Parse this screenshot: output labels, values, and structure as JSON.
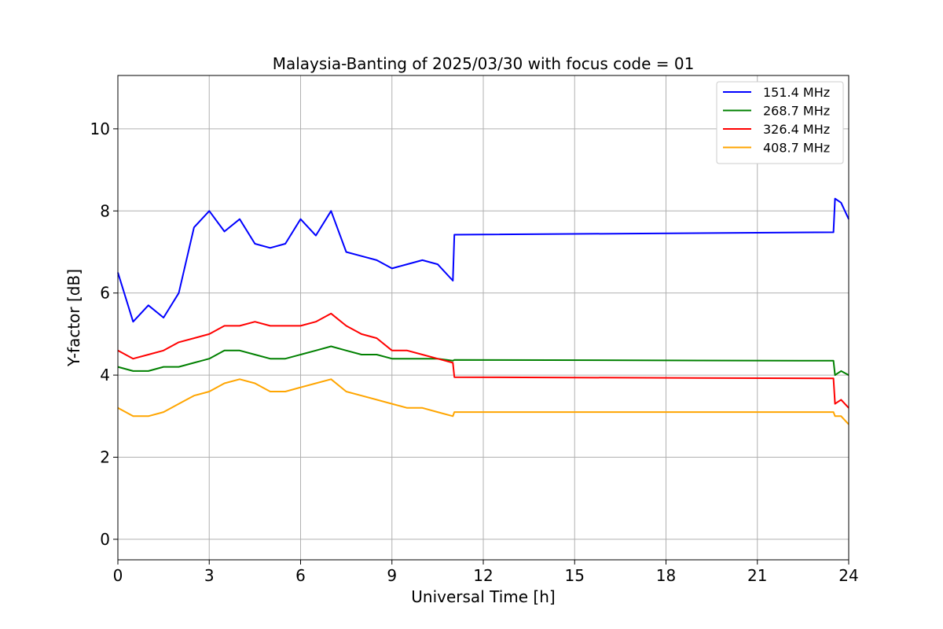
{
  "chart_data": {
    "type": "line",
    "title": "Malaysia-Banting of 2025/03/30 with focus code = 01",
    "xlabel": "Universal Time [h]",
    "ylabel": "Y-factor [dB]",
    "xlim": [
      0,
      24
    ],
    "ylim": [
      -0.5,
      11.3
    ],
    "xticks": [
      0,
      3,
      6,
      9,
      12,
      15,
      18,
      21,
      24
    ],
    "yticks": [
      0,
      2,
      4,
      6,
      8,
      10
    ],
    "grid": true,
    "legend_position": "top-right",
    "x": [
      0.0,
      0.5,
      1.0,
      1.5,
      2.0,
      2.5,
      3.0,
      3.5,
      4.0,
      4.5,
      5.0,
      5.5,
      6.0,
      6.5,
      7.0,
      7.5,
      8.0,
      8.5,
      9.0,
      9.5,
      10.0,
      10.5,
      11.0,
      11.05,
      23.5,
      23.55,
      23.75,
      24.0
    ],
    "series": [
      {
        "name": "151.4 MHz",
        "color": "#0000ff",
        "values": [
          6.5,
          5.3,
          5.7,
          5.4,
          6.0,
          7.6,
          8.0,
          7.5,
          7.8,
          7.2,
          7.1,
          7.2,
          7.8,
          7.4,
          8.0,
          7.0,
          6.9,
          6.8,
          6.6,
          6.7,
          6.8,
          6.7,
          6.3,
          7.42,
          7.48,
          8.3,
          8.2,
          7.8
        ]
      },
      {
        "name": "268.7 MHz",
        "color": "#008000",
        "values": [
          4.2,
          4.1,
          4.1,
          4.2,
          4.2,
          4.3,
          4.4,
          4.6,
          4.6,
          4.5,
          4.4,
          4.4,
          4.5,
          4.6,
          4.7,
          4.6,
          4.5,
          4.5,
          4.4,
          4.4,
          4.4,
          4.4,
          4.35,
          4.37,
          4.35,
          4.0,
          4.1,
          4.0
        ]
      },
      {
        "name": "326.4 MHz",
        "color": "#ff0000",
        "values": [
          4.6,
          4.4,
          4.5,
          4.6,
          4.8,
          4.9,
          5.0,
          5.2,
          5.2,
          5.3,
          5.2,
          5.2,
          5.2,
          5.3,
          5.5,
          5.2,
          5.0,
          4.9,
          4.6,
          4.6,
          4.5,
          4.4,
          4.3,
          3.95,
          3.92,
          3.3,
          3.4,
          3.2
        ]
      },
      {
        "name": "408.7 MHz",
        "color": "#ffa500",
        "values": [
          3.2,
          3.0,
          3.0,
          3.1,
          3.3,
          3.5,
          3.6,
          3.8,
          3.9,
          3.8,
          3.6,
          3.6,
          3.7,
          3.8,
          3.9,
          3.6,
          3.5,
          3.4,
          3.3,
          3.2,
          3.2,
          3.1,
          3.0,
          3.1,
          3.1,
          3.0,
          3.0,
          2.8
        ]
      }
    ]
  }
}
